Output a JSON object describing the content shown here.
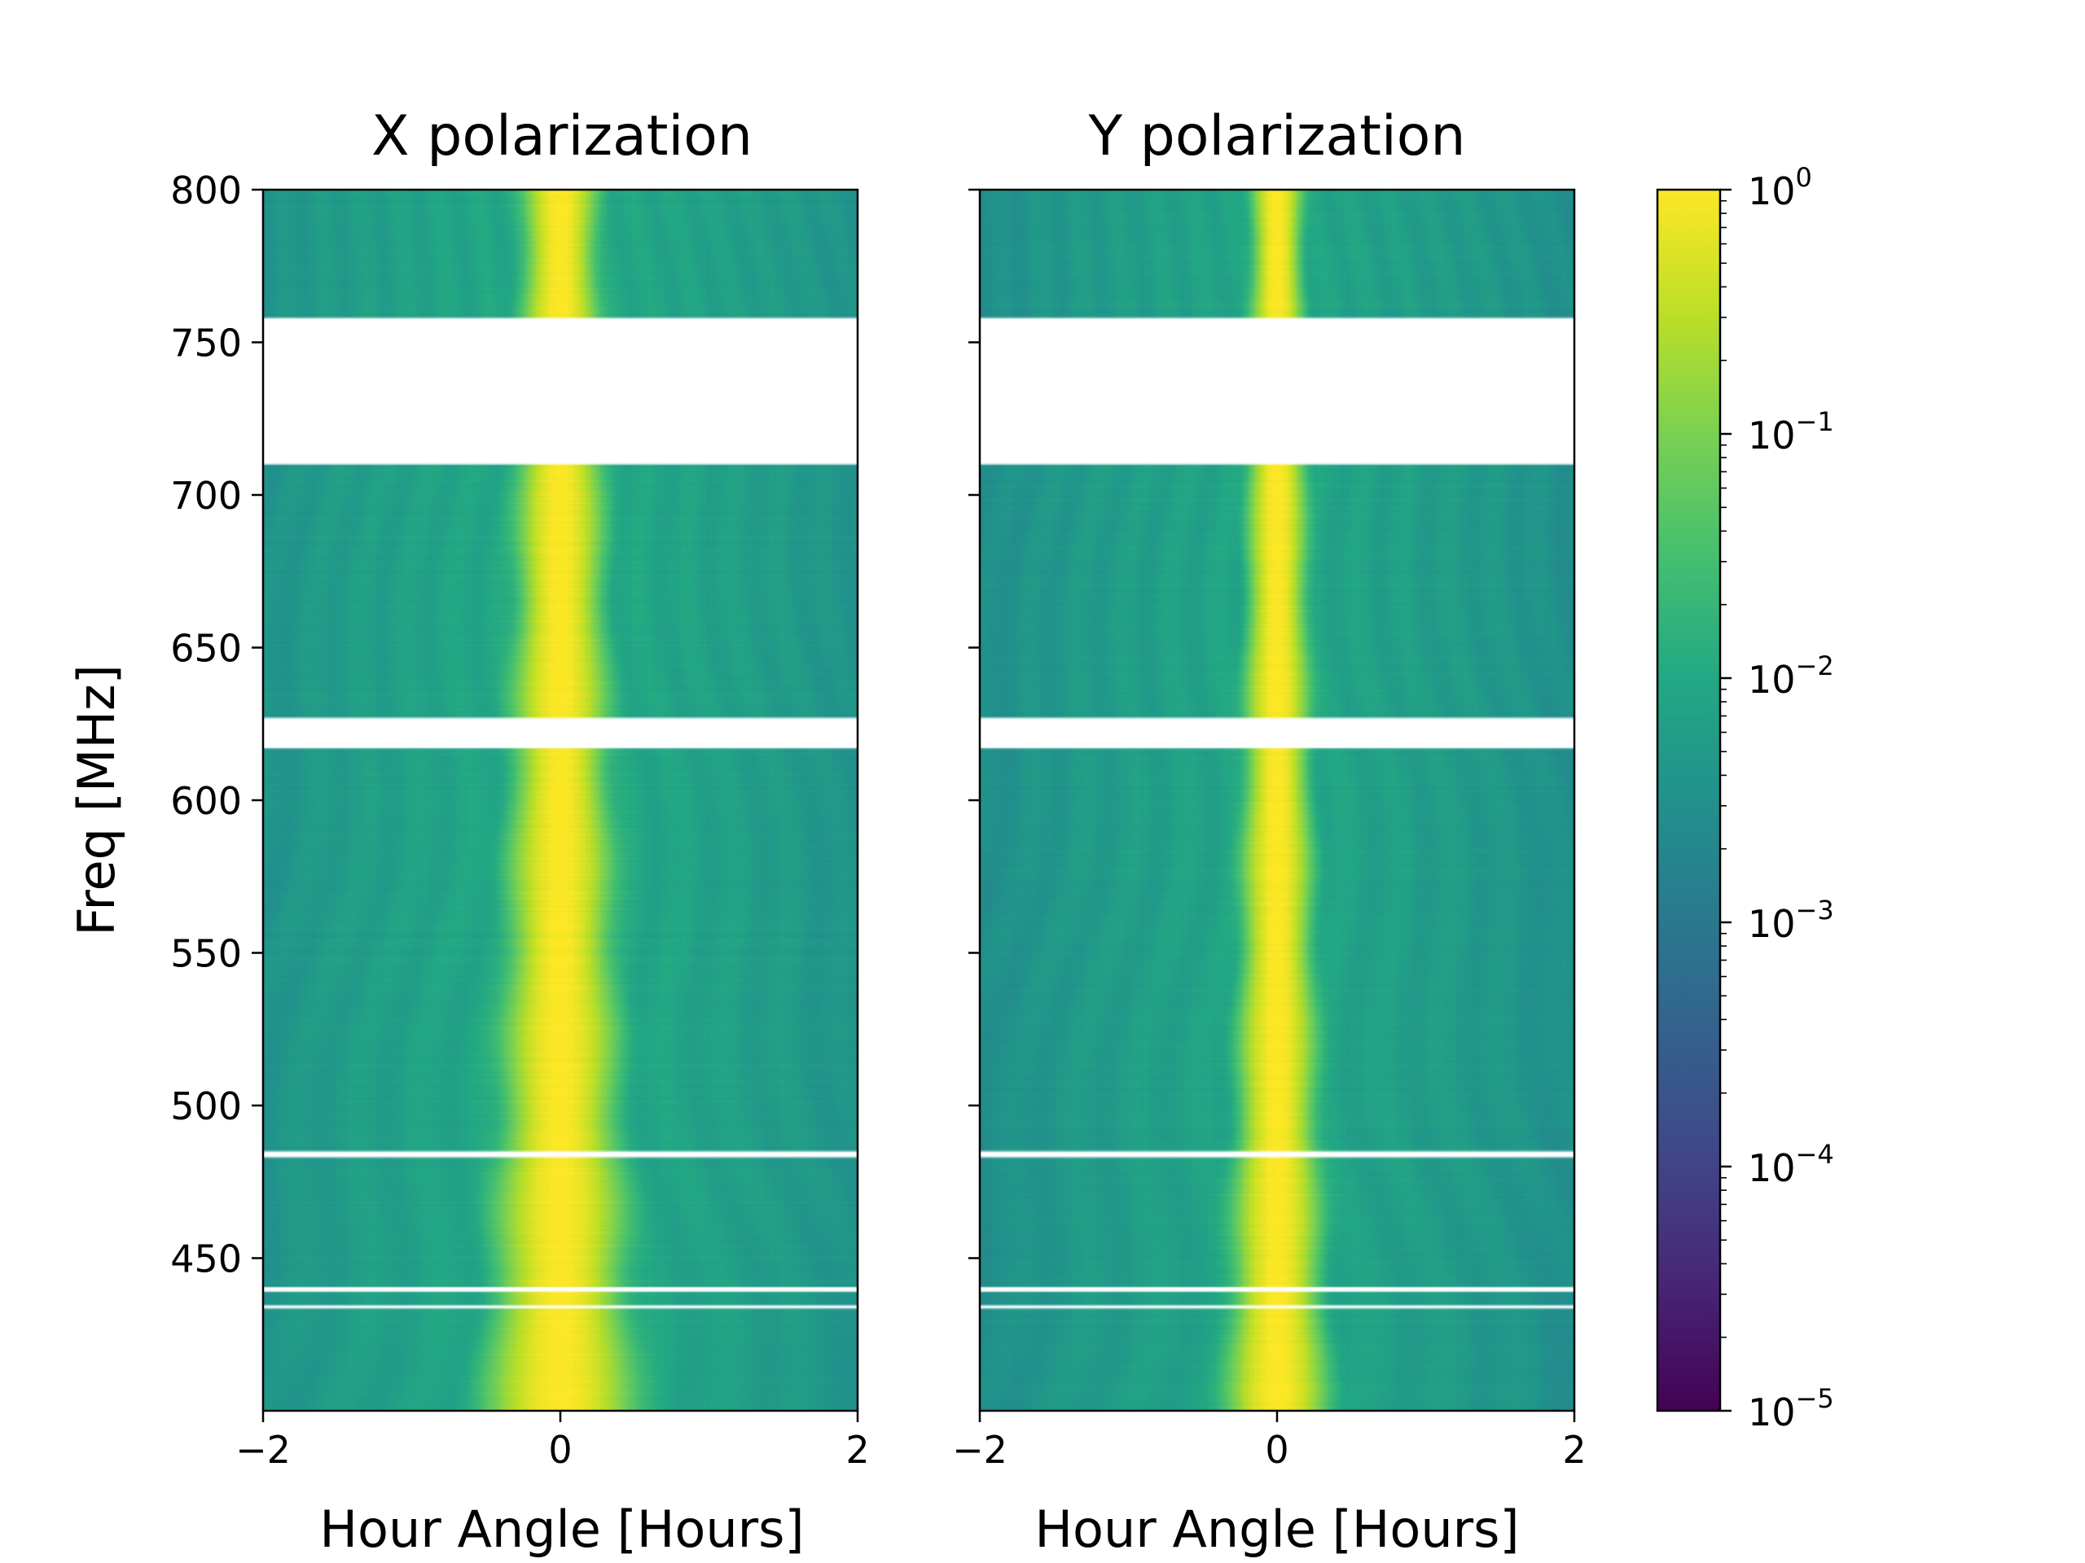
{
  "chart_data": {
    "type": "heatmap",
    "colormap": "viridis",
    "shared_y_axis": true,
    "ylabel": "Freq [MHz]",
    "y_ticks": [
      450,
      500,
      550,
      600,
      650,
      700,
      750,
      800
    ],
    "y_tick_labels": [
      "450",
      "500",
      "550",
      "600",
      "650",
      "700",
      "750",
      "800"
    ],
    "ylim": [
      400,
      800
    ],
    "masked_bands_mhz": [
      [
        710,
        758
      ],
      [
        617,
        627
      ],
      [
        483,
        485
      ],
      [
        439,
        440.5
      ],
      [
        433.5,
        434.5
      ]
    ],
    "panels": [
      {
        "title": "X polarization",
        "xlabel": "Hour Angle [Hours]",
        "xlim": [
          -2,
          2
        ],
        "x_ticks": [
          -2,
          0,
          2
        ],
        "x_tick_labels": [
          "−2",
          "0",
          "2"
        ],
        "main_beam_width_hours": 0.22,
        "sidelobe_level": 0.012,
        "edge_level": 0.004
      },
      {
        "title": "Y polarization",
        "xlabel": "Hour Angle [Hours]",
        "xlim": [
          -2,
          2
        ],
        "x_ticks": [
          -2,
          0,
          2
        ],
        "x_tick_labels": [
          "−2",
          "0",
          "2"
        ],
        "main_beam_width_hours": 0.15,
        "sidelobe_level": 0.01,
        "edge_level": 0.003
      }
    ],
    "colorbar": {
      "scale": "log",
      "range": [
        1e-05,
        1
      ],
      "tick_values": [
        1,
        0.1,
        0.01,
        0.001,
        0.0001,
        1e-05
      ],
      "tick_labels": [
        {
          "base": "10",
          "exp": "0"
        },
        {
          "base": "10",
          "exp": "−1"
        },
        {
          "base": "10",
          "exp": "−2"
        },
        {
          "base": "10",
          "exp": "−3"
        },
        {
          "base": "10",
          "exp": "−4"
        },
        {
          "base": "10",
          "exp": "−5"
        }
      ]
    }
  }
}
